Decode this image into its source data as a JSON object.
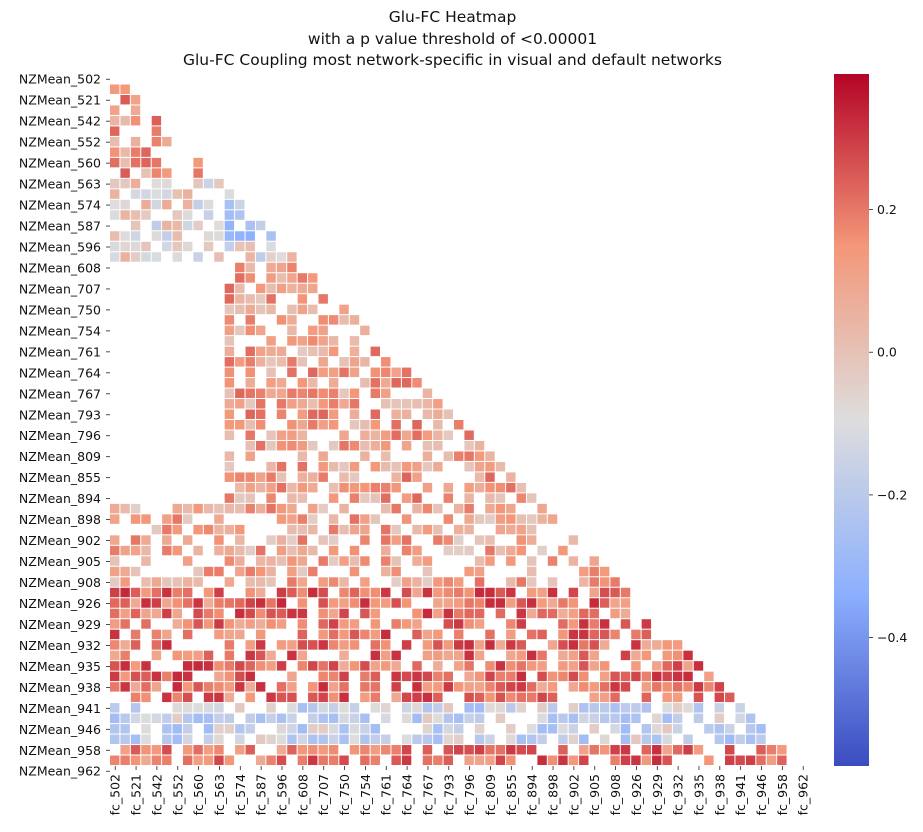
{
  "chart_data": {
    "type": "heatmap",
    "title_lines": [
      "Glu-FC Heatmap",
      "with a p value threshold of <0.00001",
      "Glu-FC Coupling most network-specific in visual and default networks"
    ],
    "xlabel": "",
    "ylabel": "",
    "colormap": "coolwarm",
    "masked": "upper-triangle",
    "grid": false,
    "legend_position": "right",
    "color_range": [
      -0.58,
      0.39
    ],
    "colorbar_ticks": [
      "0.2",
      "0.0",
      "−0.2",
      "−0.4"
    ],
    "colorbar_tick_values": [
      0.2,
      0.0,
      -0.2,
      -0.4
    ],
    "n_rows": 66,
    "n_cols": 66,
    "row_tick_labels": [
      "NZMean_502",
      "NZMean_521",
      "NZMean_542",
      "NZMean_552",
      "NZMean_560",
      "NZMean_563",
      "NZMean_574",
      "NZMean_587",
      "NZMean_596",
      "NZMean_608",
      "NZMean_707",
      "NZMean_750",
      "NZMean_754",
      "NZMean_761",
      "NZMean_764",
      "NZMean_767",
      "NZMean_793",
      "NZMean_796",
      "NZMean_809",
      "NZMean_855",
      "NZMean_894",
      "NZMean_898",
      "NZMean_902",
      "NZMean_905",
      "NZMean_908",
      "NZMean_926",
      "NZMean_929",
      "NZMean_932",
      "NZMean_935",
      "NZMean_938",
      "NZMean_941",
      "NZMean_946",
      "NZMean_958",
      "NZMean_962"
    ],
    "col_tick_labels": [
      "fc_502",
      "fc_521",
      "fc_542",
      "fc_552",
      "fc_560",
      "fc_563",
      "fc_574",
      "fc_587",
      "fc_596",
      "fc_608",
      "fc_707",
      "fc_750",
      "fc_754",
      "fc_761",
      "fc_764",
      "fc_767",
      "fc_793",
      "fc_796",
      "fc_809",
      "fc_855",
      "fc_894",
      "fc_898",
      "fc_902",
      "fc_905",
      "fc_908",
      "fc_926",
      "fc_929",
      "fc_932",
      "fc_935",
      "fc_938",
      "fc_941",
      "fc_946",
      "fc_958",
      "fc_962"
    ],
    "tick_every": 2,
    "band_values": [
      {
        "row_from": 0,
        "row_to": 9,
        "col_from": 0,
        "col_to": 65,
        "value": 0.12,
        "density": 0.55
      },
      {
        "row_from": 10,
        "row_to": 17,
        "col_from": 0,
        "col_to": 65,
        "value": -0.05,
        "density": 0.7
      },
      {
        "row_from": 12,
        "row_to": 15,
        "col_from": 11,
        "col_to": 24,
        "value": -0.25,
        "density": 0.75
      },
      {
        "row_from": 18,
        "row_to": 40,
        "col_from": 11,
        "col_to": 65,
        "value": 0.1,
        "density": 0.7
      },
      {
        "row_from": 41,
        "row_to": 48,
        "col_from": 0,
        "col_to": 65,
        "value": 0.08,
        "density": 0.6
      },
      {
        "row_from": 49,
        "row_to": 65,
        "col_from": 0,
        "col_to": 65,
        "value": 0.2,
        "density": 0.75
      },
      {
        "row_from": 60,
        "row_to": 63,
        "col_from": 0,
        "col_to": 65,
        "value": -0.15,
        "density": 0.7
      }
    ]
  }
}
